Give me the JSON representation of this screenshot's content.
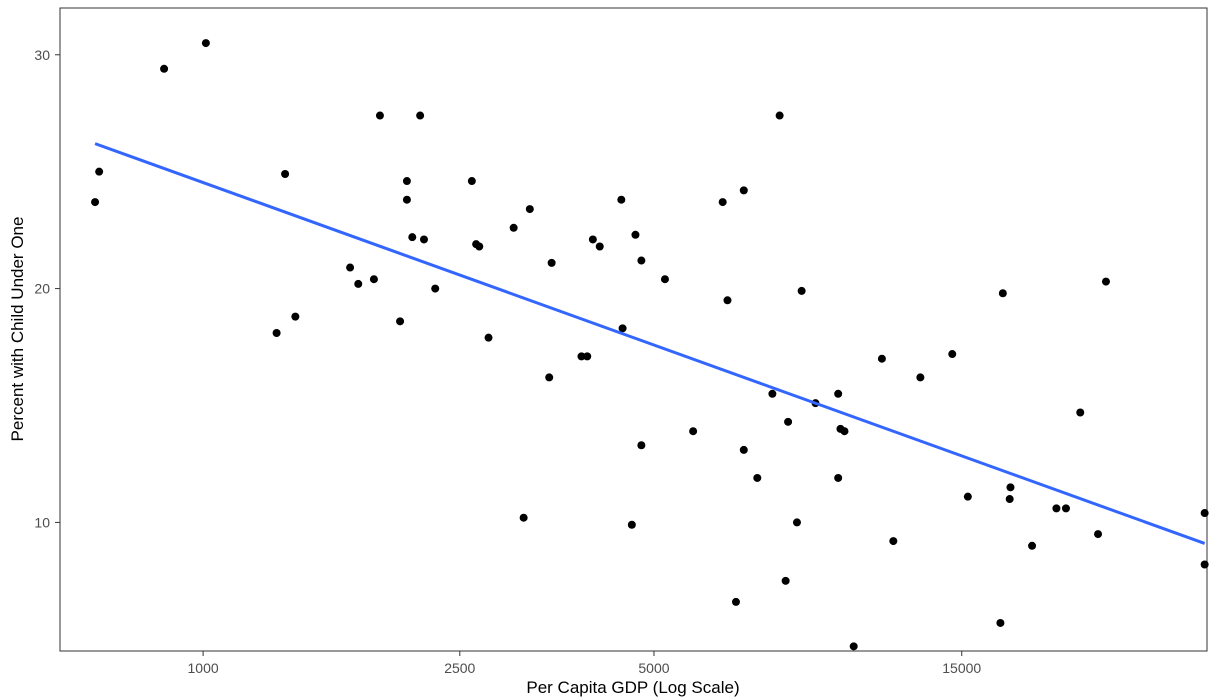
{
  "chart_data": {
    "type": "scatter",
    "title": "",
    "xlabel": "Per Capita GDP (Log Scale)",
    "ylabel": "Percent with Child Under One",
    "x_scale": "log",
    "xlim": [
      600,
      36000
    ],
    "ylim": [
      4.5,
      32
    ],
    "x_ticks": [
      1000,
      2500,
      5000,
      15000
    ],
    "x_tick_labels": [
      "1000",
      "2500",
      "5000",
      "15000"
    ],
    "y_ticks": [
      10,
      20,
      30
    ],
    "y_tick_labels": [
      "10",
      "20",
      "30"
    ],
    "grid": false,
    "legend": "none",
    "point_color": "#000000",
    "trend_color": "#3366FF",
    "points": [
      {
        "x": 680,
        "y": 23.7
      },
      {
        "x": 690,
        "y": 25.0
      },
      {
        "x": 870,
        "y": 29.4
      },
      {
        "x": 1010,
        "y": 30.5
      },
      {
        "x": 1300,
        "y": 18.1
      },
      {
        "x": 1340,
        "y": 24.9
      },
      {
        "x": 1390,
        "y": 18.8
      },
      {
        "x": 1690,
        "y": 20.9
      },
      {
        "x": 1740,
        "y": 20.2
      },
      {
        "x": 1840,
        "y": 20.4
      },
      {
        "x": 1880,
        "y": 27.4
      },
      {
        "x": 2020,
        "y": 18.6
      },
      {
        "x": 2070,
        "y": 24.6
      },
      {
        "x": 2070,
        "y": 23.8
      },
      {
        "x": 2110,
        "y": 22.2
      },
      {
        "x": 2170,
        "y": 27.4
      },
      {
        "x": 2200,
        "y": 22.1
      },
      {
        "x": 2290,
        "y": 20.0
      },
      {
        "x": 2610,
        "y": 24.6
      },
      {
        "x": 2650,
        "y": 21.9
      },
      {
        "x": 2680,
        "y": 21.8
      },
      {
        "x": 2770,
        "y": 17.9
      },
      {
        "x": 3030,
        "y": 22.6
      },
      {
        "x": 3140,
        "y": 10.2
      },
      {
        "x": 3210,
        "y": 23.4
      },
      {
        "x": 3440,
        "y": 16.2
      },
      {
        "x": 3470,
        "y": 21.1
      },
      {
        "x": 3860,
        "y": 17.1
      },
      {
        "x": 3940,
        "y": 17.1
      },
      {
        "x": 4020,
        "y": 22.1
      },
      {
        "x": 4120,
        "y": 21.8
      },
      {
        "x": 4450,
        "y": 23.8
      },
      {
        "x": 4470,
        "y": 18.3
      },
      {
        "x": 4620,
        "y": 9.9
      },
      {
        "x": 4680,
        "y": 22.3
      },
      {
        "x": 4780,
        "y": 21.2
      },
      {
        "x": 4780,
        "y": 13.3
      },
      {
        "x": 5200,
        "y": 20.4
      },
      {
        "x": 5750,
        "y": 13.9
      },
      {
        "x": 6390,
        "y": 23.7
      },
      {
        "x": 6500,
        "y": 19.5
      },
      {
        "x": 6700,
        "y": 6.6
      },
      {
        "x": 6890,
        "y": 24.2
      },
      {
        "x": 6890,
        "y": 13.1
      },
      {
        "x": 7230,
        "y": 11.9
      },
      {
        "x": 7630,
        "y": 15.5
      },
      {
        "x": 7830,
        "y": 27.4
      },
      {
        "x": 8000,
        "y": 7.5
      },
      {
        "x": 8070,
        "y": 14.3
      },
      {
        "x": 8330,
        "y": 10.0
      },
      {
        "x": 8470,
        "y": 19.9
      },
      {
        "x": 8900,
        "y": 15.1
      },
      {
        "x": 9650,
        "y": 11.9
      },
      {
        "x": 9650,
        "y": 15.5
      },
      {
        "x": 9730,
        "y": 14.0
      },
      {
        "x": 9870,
        "y": 13.9
      },
      {
        "x": 10200,
        "y": 4.7
      },
      {
        "x": 11280,
        "y": 17.0
      },
      {
        "x": 11750,
        "y": 9.2
      },
      {
        "x": 12940,
        "y": 16.2
      },
      {
        "x": 14500,
        "y": 17.2
      },
      {
        "x": 15330,
        "y": 11.1
      },
      {
        "x": 17220,
        "y": 5.7
      },
      {
        "x": 17370,
        "y": 19.8
      },
      {
        "x": 17800,
        "y": 11.0
      },
      {
        "x": 17850,
        "y": 11.5
      },
      {
        "x": 19280,
        "y": 9.0
      },
      {
        "x": 21030,
        "y": 10.6
      },
      {
        "x": 21760,
        "y": 10.6
      },
      {
        "x": 22900,
        "y": 14.7
      },
      {
        "x": 24400,
        "y": 9.5
      },
      {
        "x": 25100,
        "y": 20.3
      },
      {
        "x": 35700,
        "y": 10.4
      },
      {
        "x": 35700,
        "y": 8.2
      }
    ],
    "trend_line": {
      "x": [
        680,
        35700
      ],
      "y": [
        26.2,
        9.1
      ]
    }
  }
}
